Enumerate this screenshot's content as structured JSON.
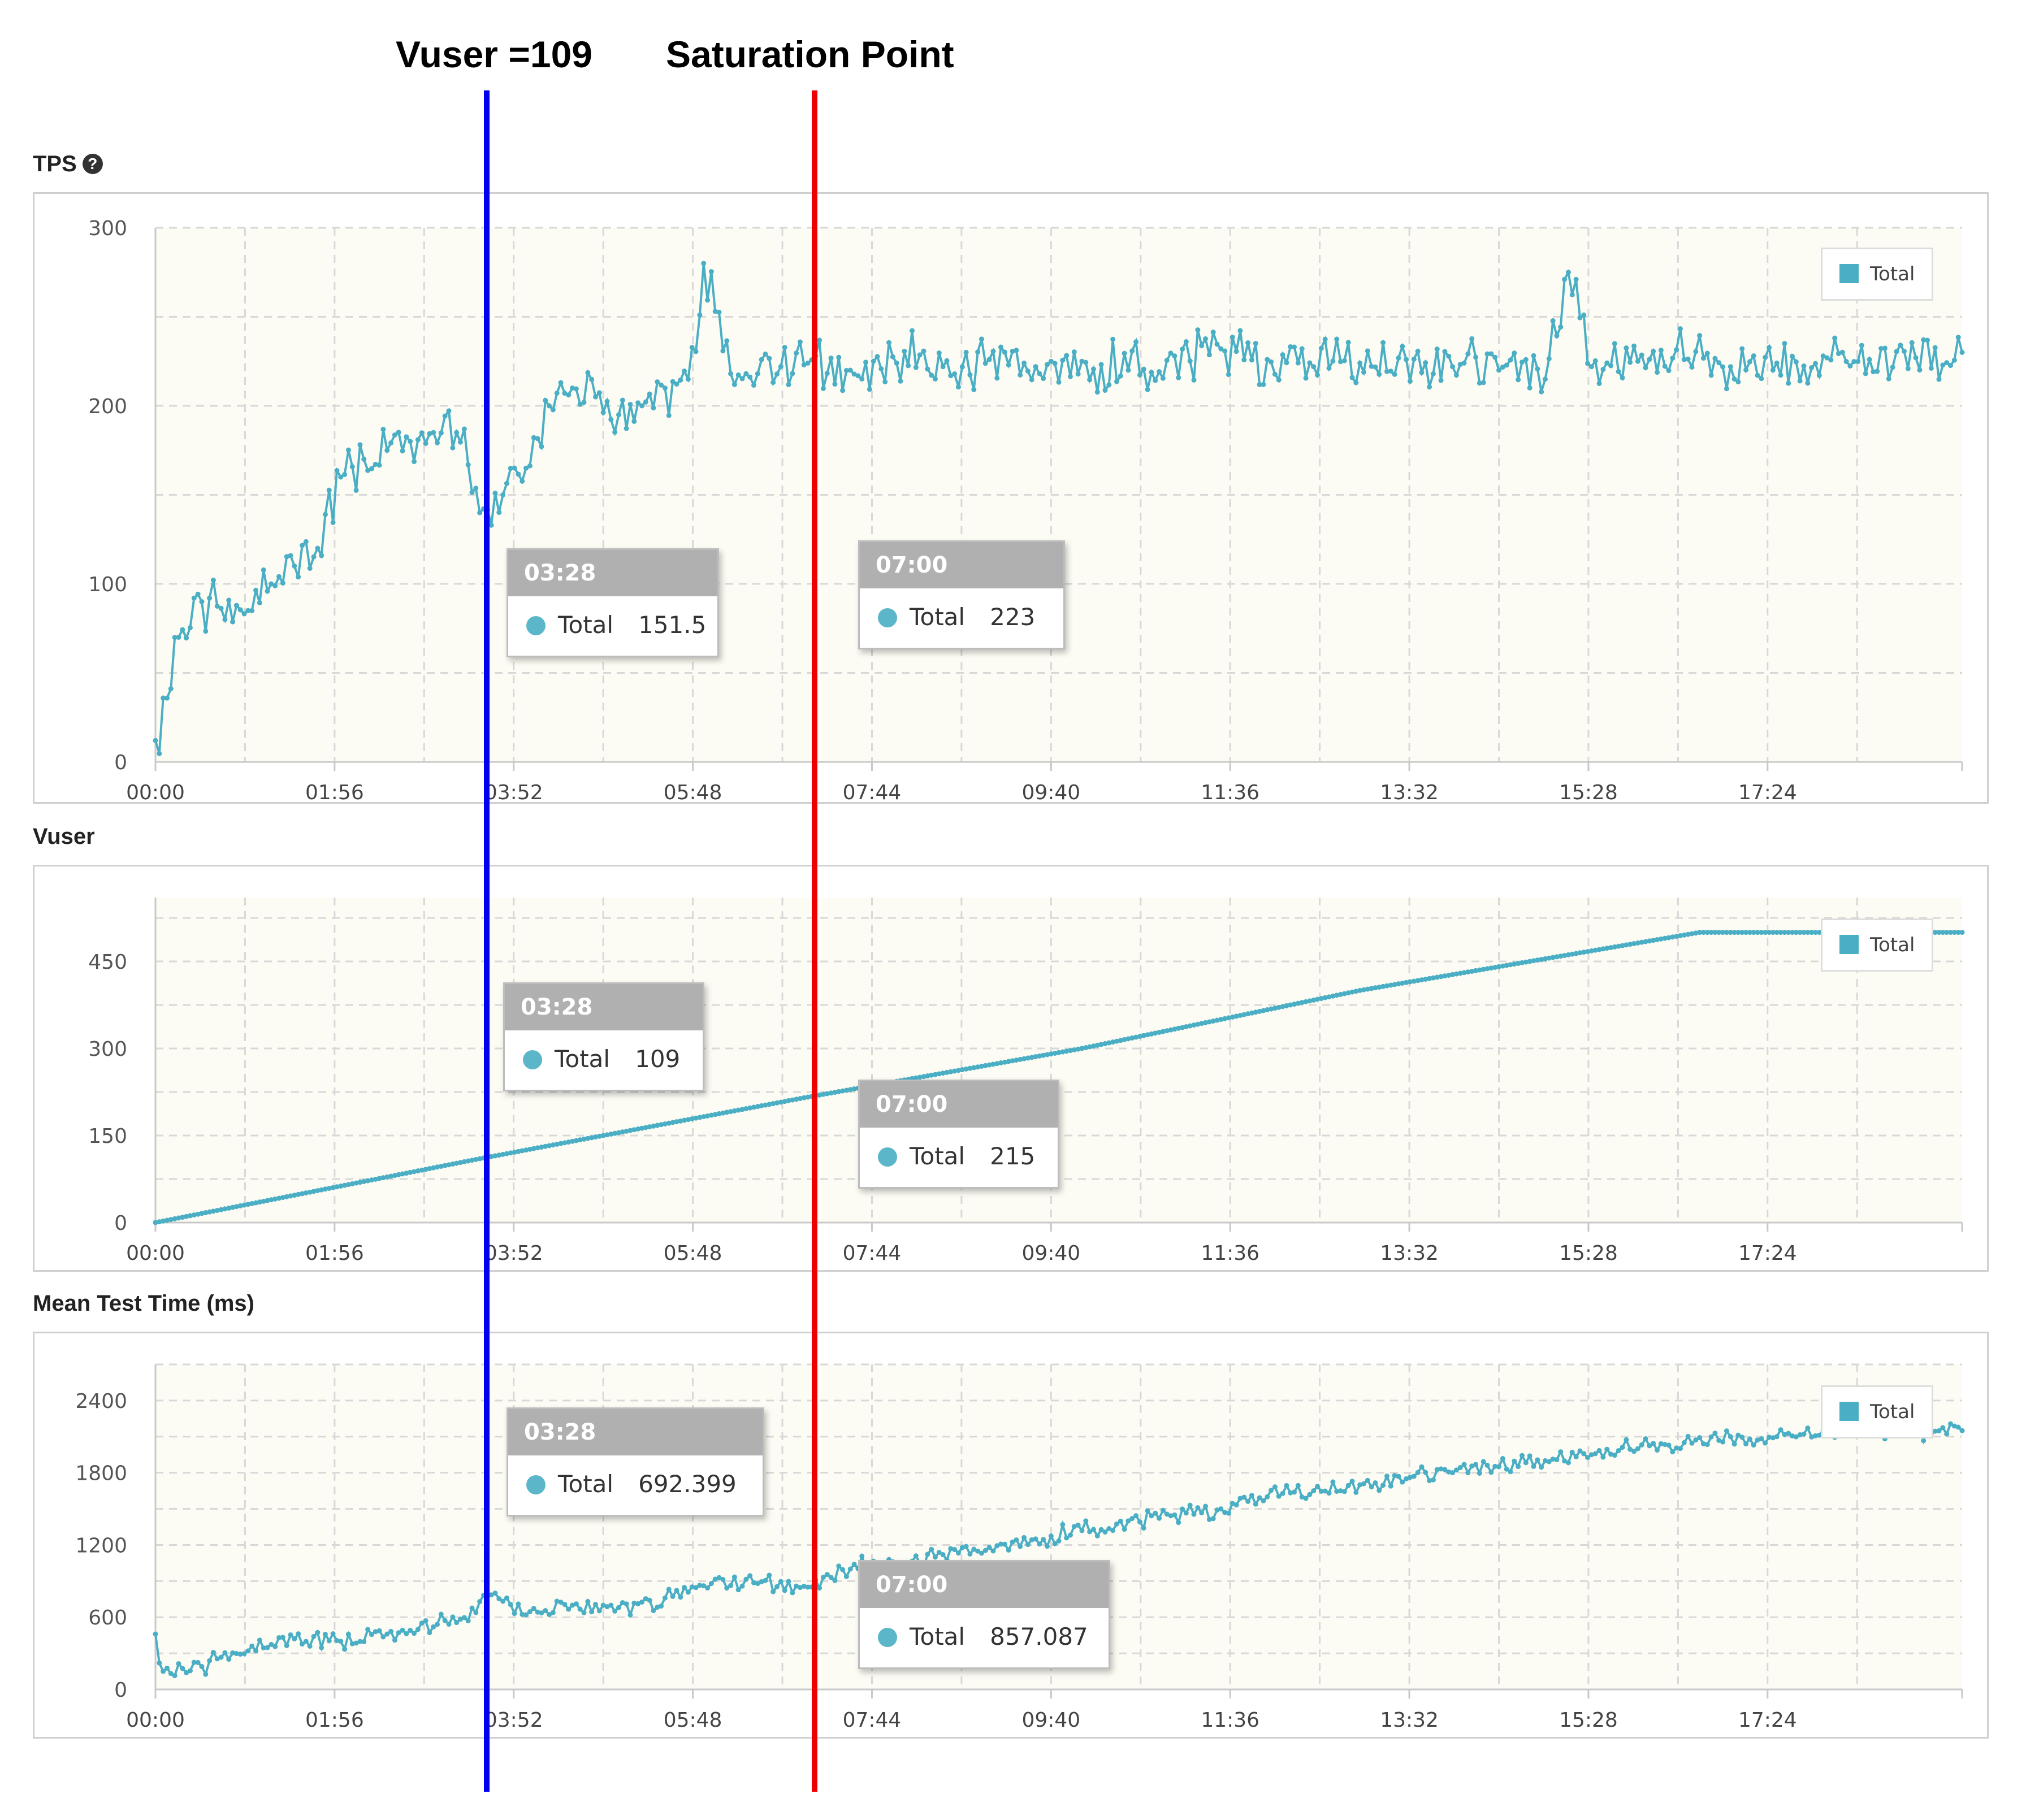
{
  "annotations": {
    "vuser_label": "Vuser =109",
    "saturation_label": "Saturation Point",
    "vuser_line_color": "#0000ee",
    "saturation_line_color": "#ee0000"
  },
  "colors": {
    "series": "#4aaec4",
    "plot_bg": "#fdfcf4",
    "grid": "#d8d8d8"
  },
  "x_ticks": [
    "00:00",
    "01:56",
    "03:52",
    "05:48",
    "07:44",
    "09:40",
    "11:36",
    "13:32",
    "15:28",
    "17:24"
  ],
  "charts": {
    "tps": {
      "title": "TPS",
      "help_icon": "question-circle-icon",
      "legend": "Total",
      "tooltip_a": {
        "time": "03:28",
        "series": "Total",
        "value": "151.5"
      },
      "tooltip_b": {
        "time": "07:00",
        "series": "Total",
        "value": "223"
      }
    },
    "vuser": {
      "title": "Vuser",
      "legend": "Total",
      "tooltip_a": {
        "time": "03:28",
        "series": "Total",
        "value": "109"
      },
      "tooltip_b": {
        "time": "07:00",
        "series": "Total",
        "value": "215"
      }
    },
    "mtt": {
      "title": "Mean Test Time (ms)",
      "legend": "Total",
      "tooltip_a": {
        "time": "03:28",
        "series": "Total",
        "value": "692.399"
      },
      "tooltip_b": {
        "time": "07:00",
        "series": "Total",
        "value": "857.087"
      }
    }
  },
  "chart_data": [
    {
      "type": "line",
      "title": "TPS",
      "x_unit": "mm:ss",
      "x_range": [
        "00:00",
        "19:30"
      ],
      "xticks": [
        "00:00",
        "01:56",
        "03:52",
        "05:48",
        "07:44",
        "09:40",
        "11:36",
        "13:32",
        "15:28",
        "17:24"
      ],
      "ylim": [
        0,
        300
      ],
      "yticks": [
        0,
        100,
        200,
        300
      ],
      "grid": true,
      "legend_position": "top-right",
      "series": [
        {
          "name": "Total",
          "x": [
            "00:00",
            "00:15",
            "00:30",
            "00:45",
            "01:00",
            "01:15",
            "01:30",
            "01:45",
            "02:00",
            "02:15",
            "02:30",
            "02:45",
            "03:00",
            "03:15",
            "03:28",
            "03:45",
            "04:00",
            "04:15",
            "04:30",
            "04:45",
            "05:00",
            "05:15",
            "05:30",
            "05:45",
            "05:55",
            "06:15",
            "06:30",
            "06:45",
            "07:00",
            "07:30",
            "08:00",
            "08:30",
            "09:00",
            "09:30",
            "10:00",
            "10:30",
            "11:00",
            "11:30",
            "12:00",
            "12:30",
            "13:00",
            "13:30",
            "14:00",
            "14:30",
            "15:00",
            "15:15",
            "15:30",
            "16:00",
            "16:30",
            "17:00",
            "17:30",
            "18:00",
            "18:30",
            "19:00",
            "19:30"
          ],
          "y": [
            12,
            70,
            90,
            80,
            85,
            100,
            110,
            120,
            160,
            170,
            175,
            180,
            185,
            185,
            151.5,
            150,
            165,
            200,
            210,
            205,
            195,
            200,
            210,
            215,
            280,
            212,
            218,
            222,
            223,
            220,
            224,
            222,
            226,
            222,
            225,
            220,
            228,
            232,
            226,
            222,
            224,
            226,
            222,
            220,
            215,
            275,
            222,
            225,
            226,
            222,
            224,
            228,
            226,
            227,
            230
          ]
        },
        {
          "name": "Total",
          "annotation": "tooltips",
          "points": [
            {
              "x": "03:28",
              "y": 151.5
            },
            {
              "x": "07:00",
              "y": 223
            }
          ]
        }
      ]
    },
    {
      "type": "line",
      "title": "Vuser",
      "x_unit": "mm:ss",
      "x_range": [
        "00:00",
        "19:30"
      ],
      "xticks": [
        "00:00",
        "01:56",
        "03:52",
        "05:48",
        "07:44",
        "09:40",
        "11:36",
        "13:32",
        "15:28",
        "17:24"
      ],
      "ylim": [
        0,
        560
      ],
      "yticks": [
        0,
        150,
        300,
        450
      ],
      "grid": true,
      "legend_position": "top-right",
      "series": [
        {
          "name": "Total",
          "x": [
            "00:00",
            "03:28",
            "07:00",
            "10:00",
            "13:00",
            "16:40",
            "17:00",
            "19:30"
          ],
          "y": [
            0,
            109,
            215,
            300,
            400,
            500,
            500,
            500
          ]
        },
        {
          "name": "Total",
          "annotation": "tooltips",
          "points": [
            {
              "x": "03:28",
              "y": 109
            },
            {
              "x": "07:00",
              "y": 215
            }
          ]
        }
      ]
    },
    {
      "type": "line",
      "title": "Mean Test Time (ms)",
      "x_unit": "mm:ss",
      "x_range": [
        "00:00",
        "19:30"
      ],
      "xticks": [
        "00:00",
        "01:56",
        "03:52",
        "05:48",
        "07:44",
        "09:40",
        "11:36",
        "13:32",
        "15:28",
        "17:24"
      ],
      "ylim": [
        0,
        2700
      ],
      "yticks": [
        0,
        600,
        1200,
        1800,
        2400
      ],
      "grid": true,
      "legend_position": "top-right",
      "series": [
        {
          "name": "Total",
          "x": [
            "00:00",
            "00:05",
            "00:30",
            "01:00",
            "01:30",
            "02:00",
            "02:30",
            "03:00",
            "03:28",
            "03:40",
            "04:00",
            "04:30",
            "05:00",
            "05:30",
            "06:00",
            "06:30",
            "07:00",
            "07:30",
            "08:00",
            "08:30",
            "09:00",
            "09:30",
            "10:00",
            "10:30",
            "11:00",
            "11:30",
            "12:00",
            "12:30",
            "13:00",
            "13:30",
            "14:00",
            "14:30",
            "15:00",
            "15:30",
            "16:00",
            "16:30",
            "17:00",
            "17:30",
            "18:00",
            "18:30",
            "19:00",
            "19:30"
          ],
          "y": [
            460,
            150,
            190,
            320,
            420,
            400,
            460,
            520,
            692.399,
            800,
            620,
            700,
            680,
            760,
            880,
            880,
            857.087,
            1000,
            1050,
            1120,
            1180,
            1250,
            1320,
            1400,
            1450,
            1500,
            1600,
            1650,
            1700,
            1750,
            1800,
            1850,
            1900,
            1950,
            2000,
            2050,
            2100,
            2100,
            2150,
            2150,
            2150,
            2150
          ]
        },
        {
          "name": "Total",
          "annotation": "tooltips",
          "points": [
            {
              "x": "03:28",
              "y": 692.399
            },
            {
              "x": "07:00",
              "y": 857.087
            }
          ]
        }
      ]
    }
  ]
}
